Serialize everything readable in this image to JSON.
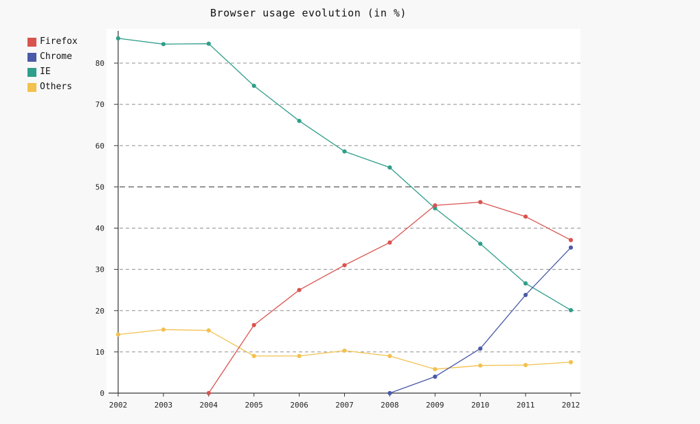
{
  "page": {
    "background": "#f8f8f8",
    "plot_background": "#ffffff"
  },
  "chart_data": {
    "type": "line",
    "title": "Browser usage evolution (in %)",
    "x": [
      2002,
      2003,
      2004,
      2005,
      2006,
      2007,
      2008,
      2009,
      2010,
      2011,
      2012
    ],
    "series": [
      {
        "name": "Firefox",
        "color": "#d9534f",
        "values": [
          null,
          null,
          0,
          16.5,
          25,
          31,
          36.5,
          45.5,
          46.3,
          42.8,
          37.1
        ]
      },
      {
        "name": "Chrome",
        "color": "#4a5aa8",
        "values": [
          null,
          null,
          null,
          null,
          null,
          null,
          0,
          4,
          10.8,
          23.8,
          35.3
        ]
      },
      {
        "name": "IE",
        "color": "#2f9e8a",
        "values": [
          86,
          84.6,
          84.7,
          74.5,
          66,
          58.6,
          54.7,
          44.8,
          36.2,
          26.6,
          20.1
        ]
      },
      {
        "name": "Others",
        "color": "#f2c14e",
        "values": [
          14.2,
          15.4,
          15.2,
          9,
          9,
          10.3,
          9,
          5.8,
          6.7,
          6.8,
          7.5
        ]
      }
    ],
    "ylim": [
      0,
      88
    ],
    "yticks": [
      0,
      10,
      20,
      30,
      40,
      50,
      60,
      70,
      80
    ],
    "emphasized_gridline": 50,
    "grid": "horizontal-dashed",
    "legend_position": "top-left",
    "xlabel": "",
    "ylabel": ""
  }
}
